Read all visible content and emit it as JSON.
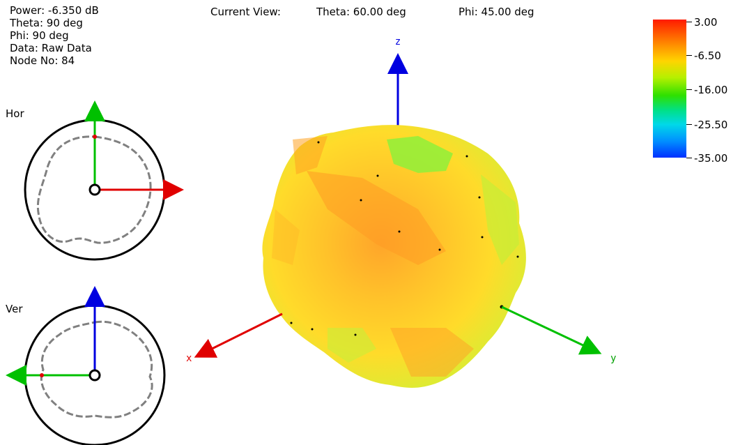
{
  "info": {
    "power": "Power: -6.350 dB",
    "theta": "Theta: 90 deg",
    "phi": "Phi: 90 deg",
    "data": "Data: Raw Data",
    "node": "Node No: 84"
  },
  "view": {
    "label": "Current View:",
    "theta": "Theta: 60.00 deg",
    "phi": "Phi: 45.00 deg"
  },
  "cuts": {
    "horizontal_label": "Hor",
    "vertical_label": "Ver"
  },
  "axes": {
    "x": "x",
    "y": "y",
    "z": "z"
  },
  "legend": {
    "ticks": [
      "3.00",
      "-6.50",
      "-16.00",
      "-25.50",
      "-35.00"
    ]
  },
  "colors": {
    "x_axis": "#e00000",
    "y_axis": "#00c000",
    "z_axis": "#0000e0",
    "pattern_trace": "#808080",
    "surface_high": "#ff8c1a",
    "surface_mid": "#ffd21f",
    "surface_low": "#9fe93a"
  }
}
